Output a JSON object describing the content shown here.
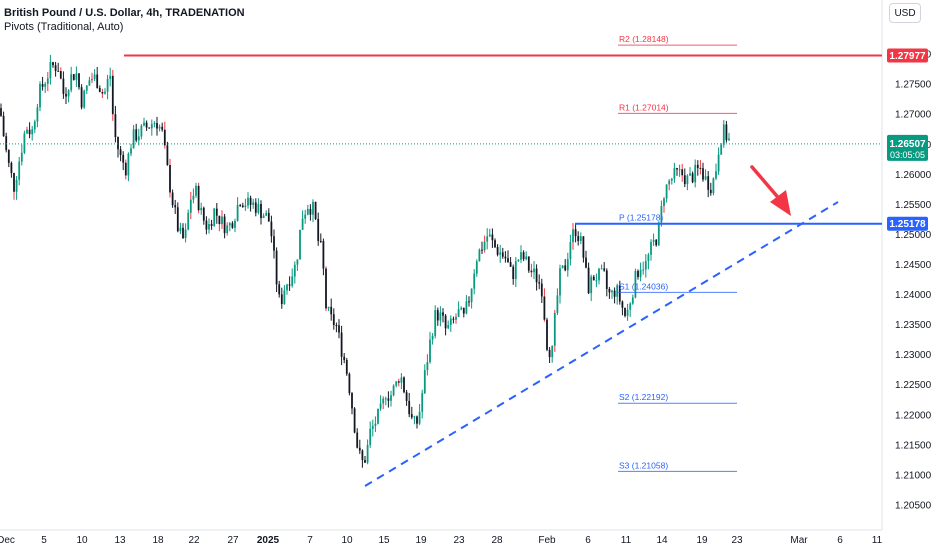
{
  "header": {
    "title": "British Pound / U.S. Dollar, 4h, TRADENATION",
    "indicator": "Pivots (Traditional, Auto)",
    "currency": "USD"
  },
  "chart_data": {
    "type": "candlestick",
    "y_axis_ticks": [
      "1.28000",
      "1.27500",
      "1.27000",
      "1.26500",
      "1.26000",
      "1.25500",
      "1.25000",
      "1.24500",
      "1.24000",
      "1.23500",
      "1.23000",
      "1.22500",
      "1.22000",
      "1.21500",
      "1.21000",
      "1.20500"
    ],
    "ylim": [
      1.2025,
      1.2865
    ],
    "x_axis_ticks": [
      "Dec",
      "5",
      "10",
      "13",
      "18",
      "22",
      "27",
      "2025",
      "7",
      "10",
      "15",
      "19",
      "23",
      "28",
      "Feb",
      "6",
      "11",
      "14",
      "19",
      "23",
      "Mar",
      "6",
      "11"
    ],
    "current_price": "1.26507",
    "countdown": "03:05:05",
    "horizontal_levels": [
      {
        "label": "1.27977",
        "value": 1.27977,
        "color": "#f23645"
      },
      {
        "label": "1.25178",
        "value": 1.25178,
        "color": "#2962ff"
      }
    ],
    "pivots": [
      {
        "name": "R2",
        "label": "R2 (1.28148)",
        "value": 1.28148,
        "color": "#f23645"
      },
      {
        "name": "R1",
        "label": "R1 (1.27014)",
        "value": 1.27014,
        "color": "#f23645"
      },
      {
        "name": "P",
        "label": "P (1.25178)",
        "value": 1.25178,
        "color": "#2962ff"
      },
      {
        "name": "S1",
        "label": "S1 (1.24036)",
        "value": 1.24036,
        "color": "#2962ff"
      },
      {
        "name": "S2",
        "label": "S2 (1.22192)",
        "value": 1.22192,
        "color": "#2962ff"
      },
      {
        "name": "S3",
        "label": "S3 (1.21058)",
        "value": 1.21058,
        "color": "#2962ff"
      }
    ],
    "candle_anchors": [
      [
        0,
        1.271
      ],
      [
        4,
        1.266
      ],
      [
        8,
        1.262
      ],
      [
        14,
        1.258
      ],
      [
        20,
        1.263
      ],
      [
        26,
        1.268
      ],
      [
        32,
        1.267
      ],
      [
        38,
        1.273
      ],
      [
        46,
        1.276
      ],
      [
        52,
        1.278
      ],
      [
        58,
        1.278
      ],
      [
        64,
        1.273
      ],
      [
        70,
        1.276
      ],
      [
        76,
        1.277
      ],
      [
        82,
        1.272
      ],
      [
        90,
        1.276
      ],
      [
        96,
        1.276
      ],
      [
        104,
        1.273
      ],
      [
        110,
        1.277
      ],
      [
        114,
        1.267
      ],
      [
        120,
        1.263
      ],
      [
        126,
        1.261
      ],
      [
        132,
        1.266
      ],
      [
        140,
        1.267
      ],
      [
        148,
        1.268
      ],
      [
        156,
        1.269
      ],
      [
        162,
        1.267
      ],
      [
        168,
        1.26
      ],
      [
        172,
        1.256
      ],
      [
        178,
        1.251
      ],
      [
        182,
        1.249
      ],
      [
        186,
        1.25
      ],
      [
        190,
        1.256
      ],
      [
        196,
        1.257
      ],
      [
        202,
        1.253
      ],
      [
        208,
        1.251
      ],
      [
        214,
        1.254
      ],
      [
        222,
        1.252
      ],
      [
        228,
        1.251
      ],
      [
        234,
        1.253
      ],
      [
        240,
        1.256
      ],
      [
        248,
        1.255
      ],
      [
        254,
        1.255
      ],
      [
        260,
        1.254
      ],
      [
        266,
        1.253
      ],
      [
        270,
        1.252
      ],
      [
        276,
        1.243
      ],
      [
        280,
        1.238
      ],
      [
        284,
        1.241
      ],
      [
        290,
        1.243
      ],
      [
        296,
        1.245
      ],
      [
        302,
        1.253
      ],
      [
        308,
        1.255
      ],
      [
        314,
        1.254
      ],
      [
        318,
        1.249
      ],
      [
        322,
        1.247
      ],
      [
        326,
        1.238
      ],
      [
        330,
        1.236
      ],
      [
        336,
        1.235
      ],
      [
        340,
        1.232
      ],
      [
        346,
        1.228
      ],
      [
        350,
        1.224
      ],
      [
        354,
        1.219
      ],
      [
        358,
        1.214
      ],
      [
        362,
        1.212
      ],
      [
        366,
        1.213
      ],
      [
        370,
        1.217
      ],
      [
        376,
        1.219
      ],
      [
        382,
        1.221
      ],
      [
        386,
        1.224
      ],
      [
        390,
        1.223
      ],
      [
        396,
        1.225
      ],
      [
        400,
        1.227
      ],
      [
        406,
        1.223
      ],
      [
        412,
        1.219
      ],
      [
        416,
        1.218
      ],
      [
        420,
        1.221
      ],
      [
        426,
        1.228
      ],
      [
        432,
        1.234
      ],
      [
        436,
        1.237
      ],
      [
        442,
        1.236
      ],
      [
        446,
        1.234
      ],
      [
        452,
        1.235
      ],
      [
        458,
        1.237
      ],
      [
        464,
        1.236
      ],
      [
        470,
        1.24
      ],
      [
        476,
        1.246
      ],
      [
        482,
        1.248
      ],
      [
        488,
        1.25
      ],
      [
        494,
        1.248
      ],
      [
        500,
        1.247
      ],
      [
        506,
        1.246
      ],
      [
        512,
        1.243
      ],
      [
        518,
        1.246
      ],
      [
        524,
        1.246
      ],
      [
        530,
        1.244
      ],
      [
        536,
        1.243
      ],
      [
        542,
        1.241
      ],
      [
        547,
        1.232
      ],
      [
        552,
        1.23
      ],
      [
        556,
        1.238
      ],
      [
        560,
        1.243
      ],
      [
        566,
        1.245
      ],
      [
        570,
        1.249
      ],
      [
        576,
        1.251
      ],
      [
        582,
        1.248
      ],
      [
        588,
        1.241
      ],
      [
        594,
        1.243
      ],
      [
        598,
        1.243
      ],
      [
        604,
        1.243
      ],
      [
        608,
        1.24
      ],
      [
        612,
        1.24
      ],
      [
        616,
        1.241
      ],
      [
        622,
        1.238
      ],
      [
        626,
        1.236
      ],
      [
        630,
        1.239
      ],
      [
        636,
        1.243
      ],
      [
        640,
        1.245
      ],
      [
        646,
        1.245
      ],
      [
        652,
        1.248
      ],
      [
        658,
        1.25
      ],
      [
        664,
        1.257
      ],
      [
        670,
        1.259
      ],
      [
        676,
        1.26
      ],
      [
        682,
        1.26
      ],
      [
        688,
        1.259
      ],
      [
        694,
        1.26
      ],
      [
        700,
        1.261
      ],
      [
        706,
        1.259
      ],
      [
        712,
        1.258
      ],
      [
        716,
        1.261
      ],
      [
        720,
        1.266
      ],
      [
        724,
        1.267
      ],
      [
        728,
        1.266
      ],
      [
        731,
        1.265
      ]
    ]
  }
}
